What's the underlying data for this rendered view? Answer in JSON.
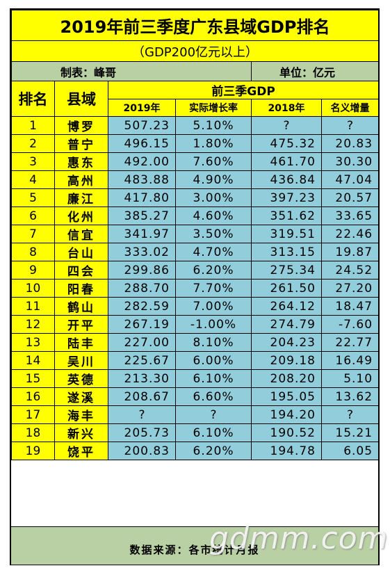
{
  "title": "2019年前三季度广东县域GDP排名",
  "subtitle": "（GDP200亿元以上）",
  "maker": "制表：峰哥",
  "unit": "单位：亿元",
  "headers": {
    "rank": "排名",
    "county": "县域",
    "group": "前三季GDP",
    "gdp2019": "2019年",
    "real_growth": "实际增长率",
    "gdp2018": "2018年",
    "nominal_increase": "名义增量"
  },
  "rows": [
    {
      "rank": "1",
      "name": "博罗",
      "gdp2019": "507.23",
      "growth": "5.10%",
      "gdp2018": "?",
      "increase": "?"
    },
    {
      "rank": "2",
      "name": "普宁",
      "gdp2019": "496.15",
      "growth": "1.80%",
      "gdp2018": "475.32",
      "increase": "20.83"
    },
    {
      "rank": "3",
      "name": "惠东",
      "gdp2019": "492.00",
      "growth": "7.60%",
      "gdp2018": "461.70",
      "increase": "30.30"
    },
    {
      "rank": "4",
      "name": "高州",
      "gdp2019": "483.88",
      "growth": "4.90%",
      "gdp2018": "436.84",
      "increase": "47.04"
    },
    {
      "rank": "5",
      "name": "廉江",
      "gdp2019": "417.80",
      "growth": "3.00%",
      "gdp2018": "397.23",
      "increase": "20.57"
    },
    {
      "rank": "6",
      "name": "化州",
      "gdp2019": "385.27",
      "growth": "4.60%",
      "gdp2018": "351.62",
      "increase": "33.65"
    },
    {
      "rank": "7",
      "name": "信宜",
      "gdp2019": "341.97",
      "growth": "3.50%",
      "gdp2018": "319.51",
      "increase": "22.46"
    },
    {
      "rank": "8",
      "name": "台山",
      "gdp2019": "333.02",
      "growth": "4.70%",
      "gdp2018": "313.15",
      "increase": "19.87"
    },
    {
      "rank": "9",
      "name": "四会",
      "gdp2019": "299.86",
      "growth": "6.20%",
      "gdp2018": "275.34",
      "increase": "24.52"
    },
    {
      "rank": "10",
      "name": "阳春",
      "gdp2019": "288.70",
      "growth": "7.70%",
      "gdp2018": "261.50",
      "increase": "27.20"
    },
    {
      "rank": "11",
      "name": "鹤山",
      "gdp2019": "282.59",
      "growth": "7.00%",
      "gdp2018": "264.12",
      "increase": "18.47"
    },
    {
      "rank": "12",
      "name": "开平",
      "gdp2019": "267.19",
      "growth": "-1.00%",
      "gdp2018": "274.79",
      "increase": "-7.60"
    },
    {
      "rank": "13",
      "name": "陆丰",
      "gdp2019": "227.00",
      "growth": "8.10%",
      "gdp2018": "204.23",
      "increase": "22.77"
    },
    {
      "rank": "14",
      "name": "吴川",
      "gdp2019": "225.67",
      "growth": "6.00%",
      "gdp2018": "209.18",
      "increase": "16.49"
    },
    {
      "rank": "15",
      "name": "英德",
      "gdp2019": "213.30",
      "growth": "6.10%",
      "gdp2018": "208.20",
      "increase": "5.10"
    },
    {
      "rank": "16",
      "name": "遂溪",
      "gdp2019": "208.67",
      "growth": "6.60%",
      "gdp2018": "195.05",
      "increase": "13.62"
    },
    {
      "rank": "17",
      "name": "海丰",
      "gdp2019": "?",
      "growth": "?",
      "gdp2018": "194.20",
      "increase": "?"
    },
    {
      "rank": "18",
      "name": "新兴",
      "gdp2019": "205.73",
      "growth": "6.10%",
      "gdp2018": "190.52",
      "increase": "15.21"
    },
    {
      "rank": "19",
      "name": "饶平",
      "gdp2019": "200.83",
      "growth": "6.20%",
      "gdp2018": "194.78",
      "increase": "6.05"
    }
  ],
  "footer": "数据来源：各市统计月报",
  "watermark": "gdmm.com",
  "colors": {
    "header_bg": "#ffff00",
    "data_bg": "#92cddc",
    "band_bg": "#b9cfa4"
  }
}
